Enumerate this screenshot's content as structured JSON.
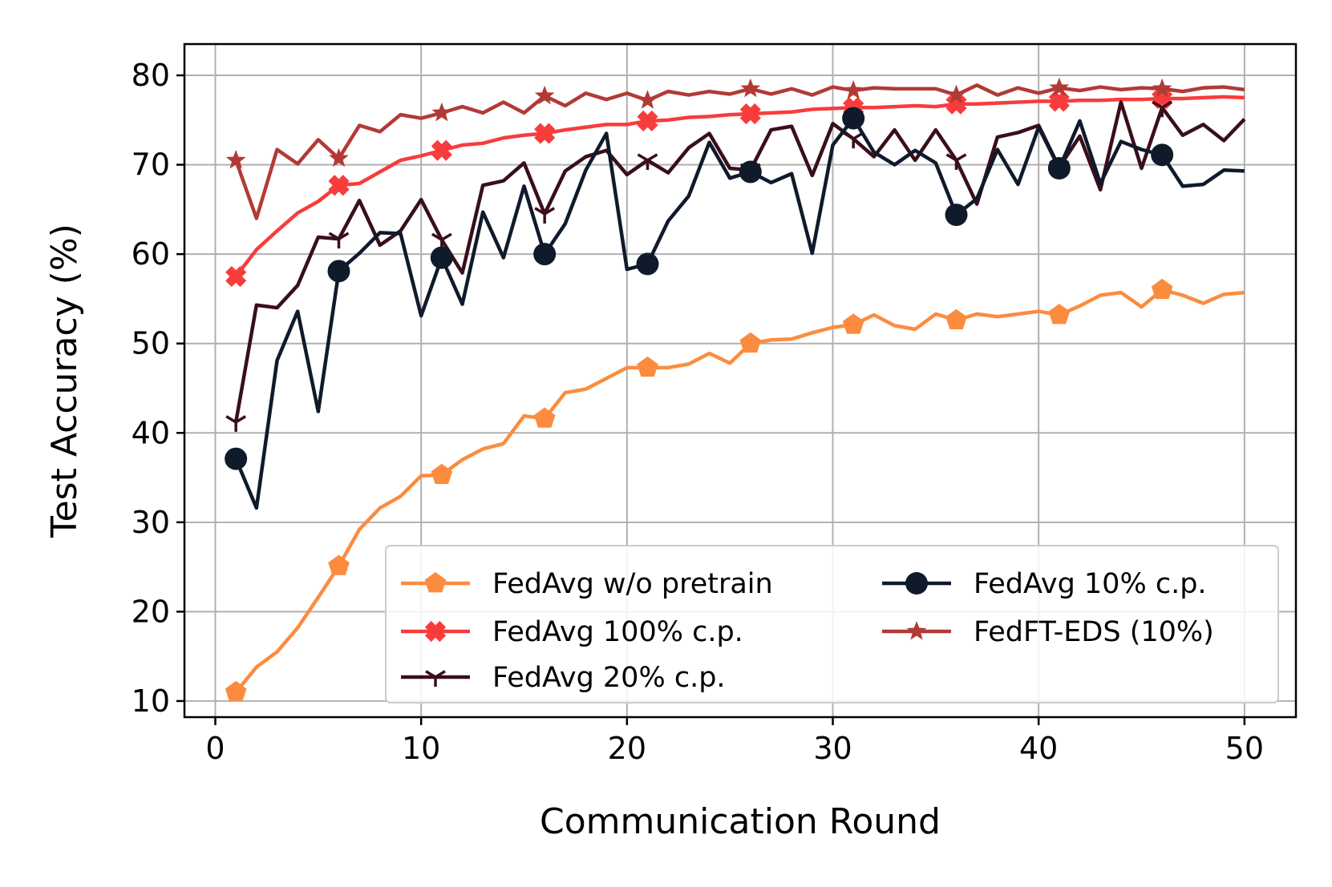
{
  "chart_data": {
    "type": "line",
    "title": "",
    "xlabel": "Communication Round",
    "ylabel": "Test Accuracy (%)",
    "xlim": [
      -1.5,
      52.5
    ],
    "ylim": [
      8.2,
      83.5
    ],
    "xticks": [
      0,
      10,
      20,
      30,
      40,
      50
    ],
    "yticks": [
      10,
      20,
      30,
      40,
      50,
      60,
      70,
      80
    ],
    "grid": true,
    "legend_position": "lower-right",
    "x": [
      1,
      2,
      3,
      4,
      5,
      6,
      7,
      8,
      9,
      10,
      11,
      12,
      13,
      14,
      15,
      16,
      17,
      18,
      19,
      20,
      21,
      22,
      23,
      24,
      25,
      26,
      27,
      28,
      29,
      30,
      31,
      32,
      33,
      34,
      35,
      36,
      37,
      38,
      39,
      40,
      41,
      42,
      43,
      44,
      45,
      46,
      47,
      48,
      49,
      50
    ],
    "series": [
      {
        "name": "FedAvg w/o pretrain",
        "color": "#fb8c3f",
        "marker": "pentagon",
        "markevery": 5,
        "values": [
          11.0,
          13.8,
          15.5,
          18.2,
          21.6,
          25.1,
          29.2,
          31.6,
          32.9,
          35.2,
          35.3,
          37.0,
          38.2,
          38.8,
          41.9,
          41.6,
          44.5,
          44.9,
          46.1,
          47.3,
          47.3,
          47.3,
          47.7,
          48.9,
          47.8,
          50.0,
          50.4,
          50.5,
          51.2,
          51.8,
          52.1,
          53.2,
          52.0,
          51.6,
          53.3,
          52.6,
          53.3,
          53.0,
          53.3,
          53.6,
          53.2,
          54.2,
          55.4,
          55.7,
          54.1,
          56.0,
          55.4,
          54.5,
          55.5,
          55.7
        ]
      },
      {
        "name": "FedAvg 100% c.p.",
        "color": "#f83c3c",
        "marker": "plus-filled",
        "markevery": 5,
        "values": [
          57.5,
          60.5,
          62.6,
          64.6,
          65.9,
          67.7,
          67.9,
          69.2,
          70.5,
          71.0,
          71.6,
          72.2,
          72.4,
          73.0,
          73.3,
          73.5,
          73.9,
          74.2,
          74.5,
          74.5,
          74.9,
          75.0,
          75.3,
          75.4,
          75.6,
          75.7,
          75.8,
          75.9,
          76.2,
          76.3,
          76.4,
          76.4,
          76.5,
          76.6,
          76.5,
          76.8,
          76.8,
          76.9,
          77.0,
          77.1,
          77.1,
          77.2,
          77.2,
          77.3,
          77.3,
          77.4,
          77.4,
          77.5,
          77.6,
          77.5
        ]
      },
      {
        "name": "FedAvg 20% c.p.",
        "color": "#3a0e1c",
        "marker": "tri",
        "markevery": 5,
        "values": [
          41.2,
          54.3,
          54.0,
          56.5,
          61.9,
          61.7,
          66.0,
          61.0,
          62.6,
          66.1,
          61.6,
          57.9,
          67.7,
          68.2,
          70.2,
          64.5,
          69.3,
          70.9,
          71.6,
          68.9,
          70.5,
          69.1,
          71.9,
          73.5,
          69.6,
          69.4,
          73.9,
          74.3,
          68.8,
          74.6,
          72.9,
          70.9,
          73.9,
          70.5,
          73.9,
          70.5,
          65.6,
          73.1,
          73.6,
          74.4,
          69.7,
          73.2,
          67.2,
          77.0,
          69.6,
          76.4,
          73.3,
          74.5,
          72.7,
          75.1
        ]
      },
      {
        "name": "FedAvg 10% c.p.",
        "color": "#0f1a2b",
        "marker": "circle",
        "markevery": 5,
        "values": [
          37.1,
          31.6,
          48.1,
          53.6,
          42.4,
          58.1,
          60.1,
          62.4,
          62.3,
          53.1,
          59.6,
          54.4,
          64.7,
          59.6,
          67.6,
          60.0,
          63.4,
          69.4,
          73.5,
          58.3,
          58.9,
          63.7,
          66.5,
          72.5,
          68.5,
          69.2,
          68.0,
          69.0,
          60.1,
          72.2,
          75.2,
          71.4,
          70.0,
          71.6,
          70.2,
          64.4,
          66.2,
          71.7,
          67.8,
          74.2,
          69.6,
          74.9,
          67.9,
          72.6,
          71.7,
          71.1,
          67.6,
          67.8,
          69.4,
          69.3
        ]
      },
      {
        "name": "FedFT-EDS (10%)",
        "color": "#b23a36",
        "marker": "star",
        "markevery": 5,
        "values": [
          70.5,
          64.0,
          71.7,
          70.1,
          72.8,
          70.7,
          74.4,
          73.7,
          75.6,
          75.2,
          75.8,
          76.5,
          75.8,
          77.0,
          75.8,
          77.7,
          76.6,
          78.0,
          77.3,
          78.0,
          77.2,
          78.2,
          77.8,
          78.2,
          77.9,
          78.5,
          77.9,
          78.5,
          77.8,
          78.7,
          78.3,
          78.6,
          78.5,
          78.5,
          78.5,
          77.8,
          78.9,
          77.8,
          78.6,
          78.0,
          78.6,
          78.3,
          78.7,
          78.4,
          78.6,
          78.5,
          78.2,
          78.6,
          78.7,
          78.4
        ]
      }
    ]
  }
}
